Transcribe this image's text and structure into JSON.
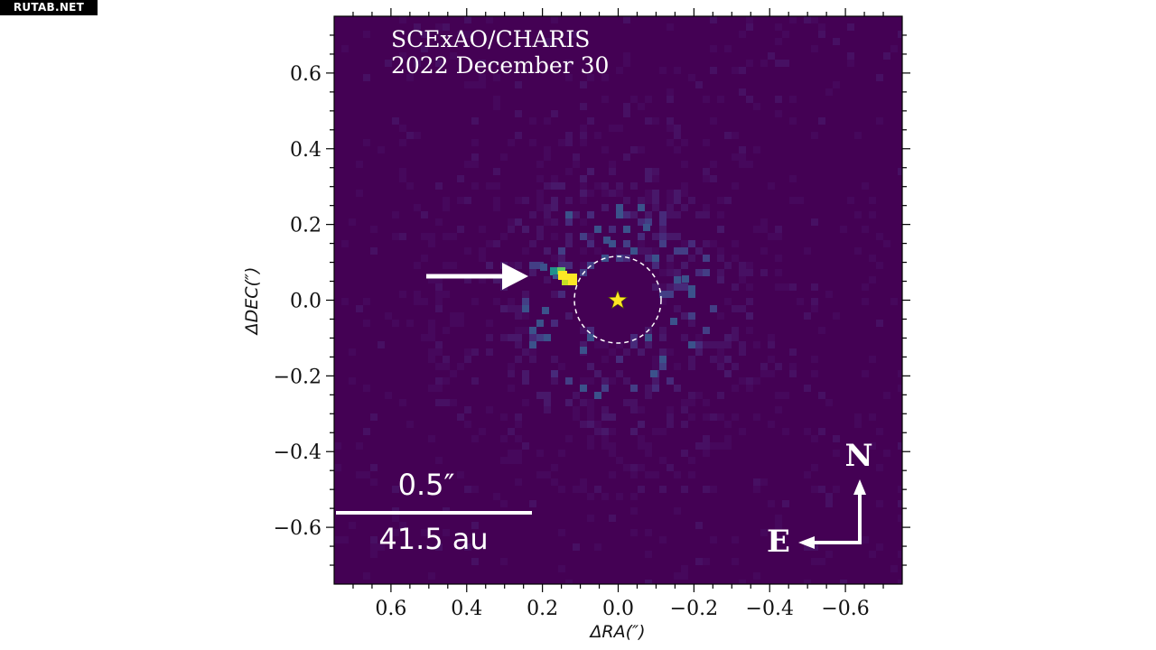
{
  "watermark": "RUTAB.NET",
  "title_lines": [
    "SCExAO/CHARIS",
    "2022 December 30"
  ],
  "axes": {
    "xlabel": "ΔRA(″)",
    "ylabel": "ΔDEC(″)",
    "x_ticks": [
      "0.6",
      "0.4",
      "0.2",
      "0.0",
      "−0.2",
      "−0.4",
      "−0.6"
    ],
    "y_ticks": [
      "0.6",
      "0.4",
      "0.2",
      "0.0",
      "−0.2",
      "−0.4",
      "−0.6"
    ],
    "x_values": [
      0.6,
      0.4,
      0.2,
      0.0,
      -0.2,
      -0.4,
      -0.6
    ],
    "y_values": [
      0.6,
      0.4,
      0.2,
      0.0,
      -0.2,
      -0.4,
      -0.6
    ],
    "xlim": [
      0.75,
      -0.75
    ],
    "ylim": [
      -0.75,
      0.75
    ]
  },
  "scale_bar": {
    "top_label": "0.5″",
    "bottom_label": "41.5 au"
  },
  "compass": {
    "north": "N",
    "east": "E"
  },
  "colors": {
    "background": "#440154",
    "companion": "#fde725",
    "star": "#fde725",
    "overlay": "#ffffff"
  }
}
